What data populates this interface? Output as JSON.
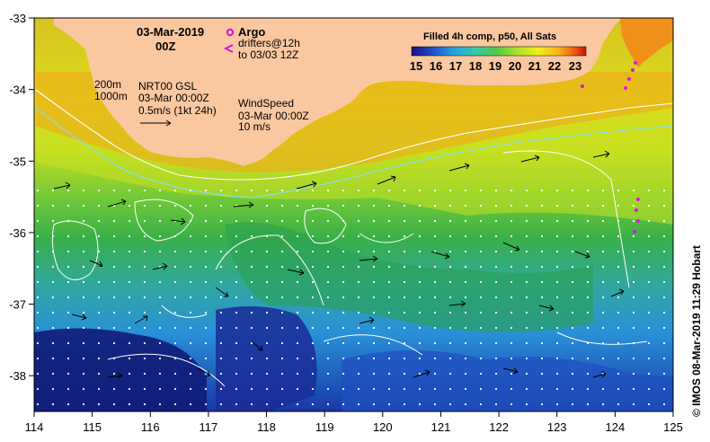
{
  "map": {
    "date": "03-Mar-2019",
    "time": "00Z",
    "legend_argo": "Argo",
    "legend_drifters_1": "drifters@12h",
    "legend_drifters_2": "to 03/03 12Z",
    "legend_argo_color": "#e010e0",
    "contour_200": "200m",
    "contour_1000": "1000m",
    "current_label_1": "NRT00 GSL",
    "current_label_2": "03-Mar 00:00Z",
    "current_label_3": "0.5m/s (1kt 24h)",
    "wind_label_1": "WindSpeed",
    "wind_label_2": "03-Mar 00:00Z",
    "wind_label_3": "10 m/s",
    "colorbar_title": "Filled 4h comp, p50, All Sats",
    "colorbar_ticks": [
      "15",
      "16",
      "17",
      "18",
      "19",
      "20",
      "21",
      "22",
      "23"
    ],
    "colorbar_colors": [
      "#1a1080",
      "#1f4fc8",
      "#27a2e0",
      "#33c8b0",
      "#4cc84c",
      "#a8e028",
      "#f0f018",
      "#f8b418",
      "#f06010",
      "#c81010"
    ],
    "credit": "© IMOS 08-Mar-2019 11:29 Hobart",
    "x_ticks": [
      "114",
      "115",
      "116",
      "117",
      "118",
      "119",
      "120",
      "121",
      "122",
      "123",
      "124",
      "125"
    ],
    "y_ticks": [
      "-33",
      "-34",
      "-35",
      "-36",
      "-37",
      "-38"
    ],
    "land_color": "#fac8a0",
    "xlim": [
      114,
      125
    ],
    "ylim": [
      -38.5,
      -33
    ]
  }
}
